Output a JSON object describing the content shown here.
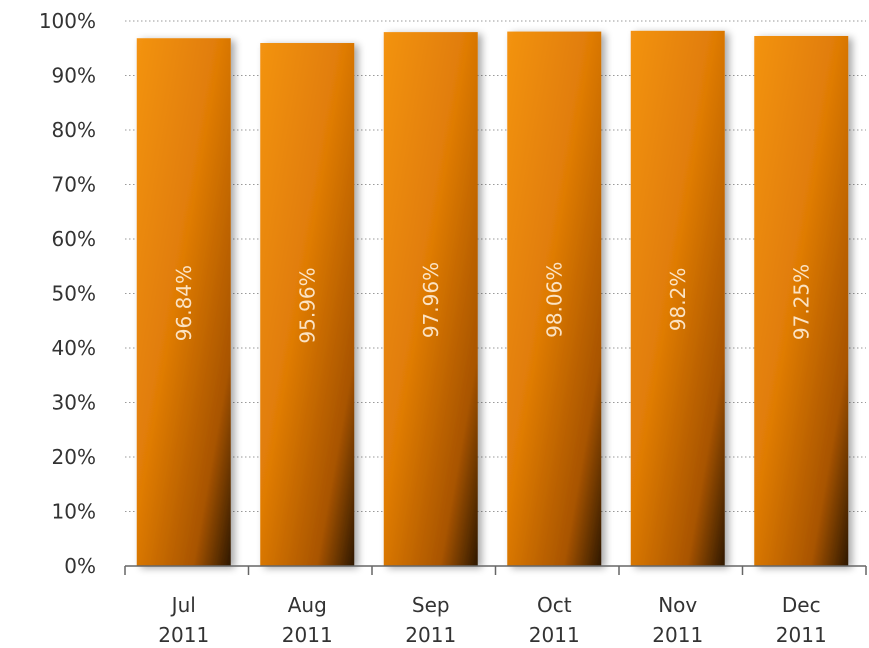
{
  "chart_data": {
    "type": "bar",
    "categories": [
      [
        "Jul",
        "2011"
      ],
      [
        "Aug",
        "2011"
      ],
      [
        "Sep",
        "2011"
      ],
      [
        "Oct",
        "2011"
      ],
      [
        "Nov",
        "2011"
      ],
      [
        "Dec",
        "2011"
      ]
    ],
    "values": [
      96.84,
      95.96,
      97.96,
      98.06,
      98.2,
      97.25
    ],
    "data_labels": [
      "96.84%",
      "95.96%",
      "97.96%",
      "98.06%",
      "98.2%",
      "97.25%"
    ],
    "y_ticks": [
      0,
      10,
      20,
      30,
      40,
      50,
      60,
      70,
      80,
      90,
      100
    ],
    "y_tick_labels": [
      "0%",
      "10%",
      "20%",
      "30%",
      "40%",
      "50%",
      "60%",
      "70%",
      "80%",
      "90%",
      "100%"
    ],
    "ylim": [
      0,
      100
    ],
    "grid": true,
    "legend": "none",
    "bar_color": "#f08a00",
    "bar_shade_color": "#2e1800"
  }
}
